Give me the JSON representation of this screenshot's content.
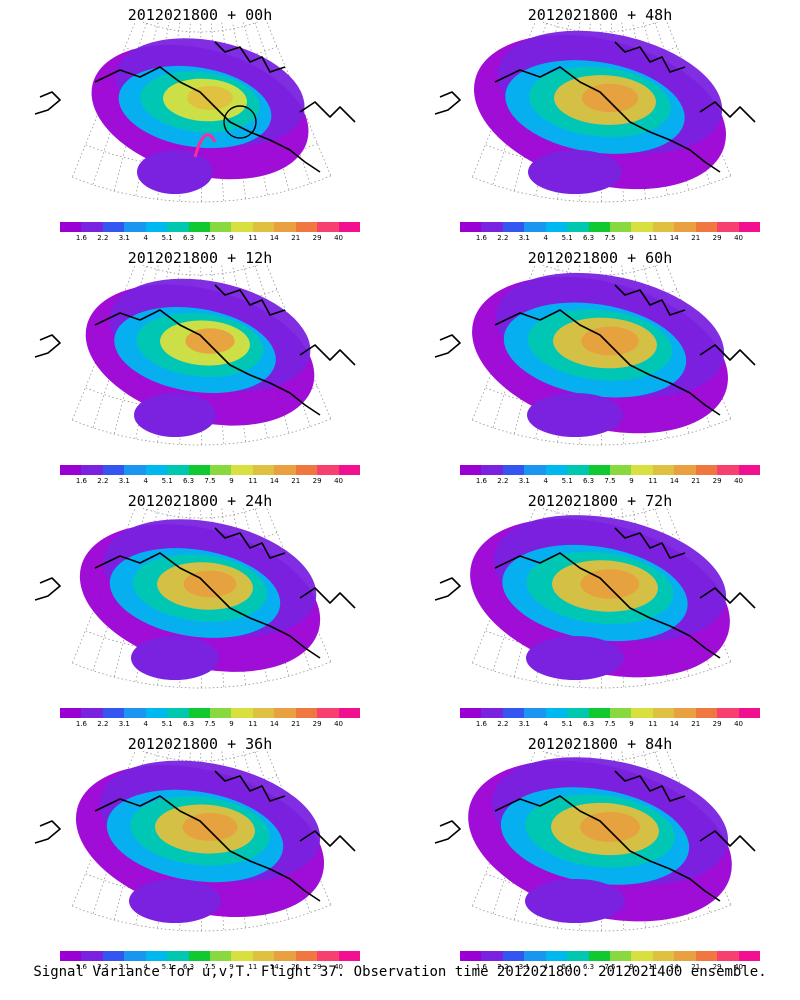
{
  "panels": [
    {
      "id": "p00",
      "title": "2012021800  + 00h",
      "intensity": 0.4
    },
    {
      "id": "p48",
      "title": "2012021800  + 48h",
      "intensity": 0.85
    },
    {
      "id": "p12",
      "title": "2012021800  + 12h",
      "intensity": 0.55
    },
    {
      "id": "p60",
      "title": "2012021800  + 60h",
      "intensity": 0.9
    },
    {
      "id": "p24",
      "title": "2012021800  + 24h",
      "intensity": 0.7
    },
    {
      "id": "p72",
      "title": "2012021800  + 72h",
      "intensity": 0.95
    },
    {
      "id": "p36",
      "title": "2012021800  + 36h",
      "intensity": 0.8
    },
    {
      "id": "p84",
      "title": "2012021800  + 84h",
      "intensity": 1.0
    }
  ],
  "colorbar": {
    "labels": [
      "1.6",
      "2.2",
      "3.1",
      "4",
      "5.1",
      "6.3",
      "7.5",
      "9",
      "11",
      "14",
      "21",
      "29",
      "40"
    ],
    "colors": [
      "#9a00d4",
      "#7a22e0",
      "#3355f0",
      "#1a96f0",
      "#00b8f0",
      "#00c8b0",
      "#10c830",
      "#88d840",
      "#d8e040",
      "#e0c040",
      "#e8a040",
      "#f07840",
      "#f84070",
      "#f01090"
    ]
  },
  "footer": "Signal Variance for u,v,T. Flight 37. Observation time 2012021800. 2012021400 ensemble."
}
